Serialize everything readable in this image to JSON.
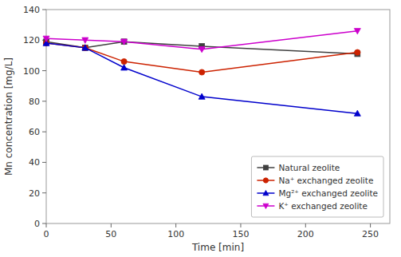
{
  "chart_data": {
    "type": "line",
    "x": [
      0,
      30,
      60,
      120,
      240
    ],
    "series": [
      {
        "name": "Natural zeolite",
        "color": "#404040",
        "marker": "square",
        "line_style": "solid",
        "values": [
          119,
          115,
          119,
          116,
          111
        ]
      },
      {
        "name": "Na⁺ exchanged zeolite",
        "color": "#cc2200",
        "marker": "circle",
        "line_style": "solid",
        "values": [
          118,
          115,
          106,
          99,
          112
        ]
      },
      {
        "name": "Mg²⁺ exchanged zeolite",
        "color": "#0000cc",
        "marker": "triangle-up",
        "line_style": "solid",
        "values": [
          118,
          115,
          102,
          83,
          72
        ]
      },
      {
        "name": "K⁺ exchanged zeolite",
        "color": "#cc00cc",
        "marker": "triangle-down",
        "line_style": "solid",
        "values": [
          121,
          120,
          119,
          114,
          126
        ]
      }
    ],
    "xlabel": "Time [min]",
    "ylabel": "Mn concentration [mg/L]",
    "xlim": [
      0,
      265
    ],
    "ylim": [
      0,
      140
    ],
    "xticks": [
      0,
      50,
      100,
      150,
      200,
      250
    ],
    "yticks": [
      0,
      20,
      40,
      60,
      80,
      100,
      120,
      140
    ],
    "grid": false,
    "legend": "lower right"
  }
}
